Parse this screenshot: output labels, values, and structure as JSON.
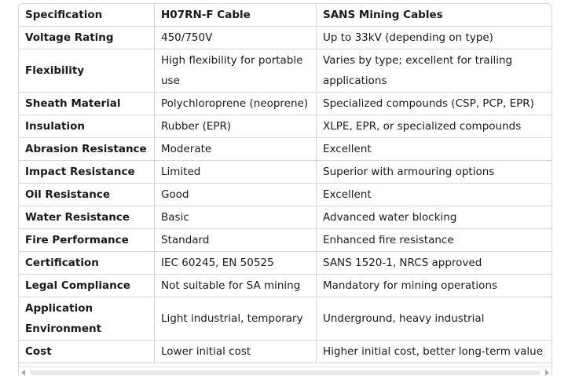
{
  "table": {
    "headers": [
      "Specification",
      "H07RN-F Cable",
      "SANS Mining Cables"
    ],
    "rows": [
      [
        "Voltage Rating",
        "450/750V",
        "Up to 33kV (depending on type)"
      ],
      [
        "Flexibility",
        "High flexibility for portable use",
        "Varies by type; excellent for trailing applications"
      ],
      [
        "Sheath Material",
        "Polychloroprene (neoprene)",
        "Specialized compounds (CSP, PCP, EPR)"
      ],
      [
        "Insulation",
        "Rubber (EPR)",
        "XLPE, EPR, or specialized compounds"
      ],
      [
        "Abrasion Resistance",
        "Moderate",
        "Excellent"
      ],
      [
        "Impact Resistance",
        "Limited",
        "Superior with armouring options"
      ],
      [
        "Oil Resistance",
        "Good",
        "Excellent"
      ],
      [
        "Water Resistance",
        "Basic",
        "Advanced water blocking"
      ],
      [
        "Fire Performance",
        "Standard",
        "Enhanced fire resistance"
      ],
      [
        "Certification",
        "IEC 60245, EN 50525",
        "SANS 1520-1, NRCS approved"
      ],
      [
        "Legal Compliance",
        "Not suitable for SA mining",
        "Mandatory for mining operations"
      ],
      [
        "Application Environment",
        "Light industrial, temporary",
        "Underground, heavy industrial"
      ],
      [
        "Cost",
        "Lower initial cost",
        "Higher initial cost, better long-term value"
      ]
    ]
  },
  "scrollbar": {
    "left_icon": "scroll-left-arrow-icon",
    "right_icon": "scroll-right-arrow-icon"
  }
}
